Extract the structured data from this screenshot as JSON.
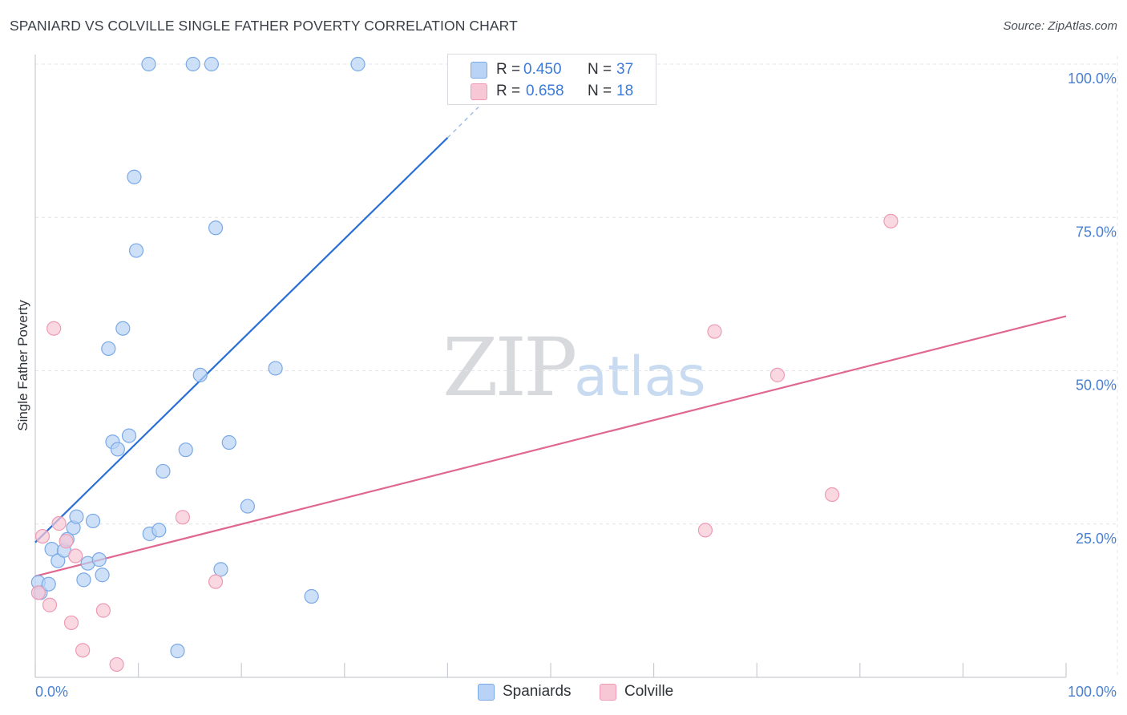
{
  "header": {
    "title": "SPANIARD VS COLVILLE SINGLE FATHER POVERTY CORRELATION CHART",
    "source": "Source: ZipAtlas.com"
  },
  "watermark": {
    "zip": "ZIP",
    "atlas": "atlas"
  },
  "legend": {
    "rows": [
      {
        "r_label": "R =",
        "r_value": "0.450",
        "n_label": "N =",
        "n_value": "37"
      },
      {
        "r_label": "R =",
        "r_value": "0.658",
        "n_label": "N =",
        "n_value": "18"
      }
    ]
  },
  "bottom_legend": {
    "spaniards": "Spaniards",
    "colville": "Colville"
  },
  "colors": {
    "spaniards_fill": "#b8d3f5",
    "spaniards_stroke": "#7aa9e6",
    "spaniards_line": "#2a6fd6",
    "colville_fill": "#f8c7d6",
    "colville_stroke": "#ee9ab4",
    "colville_line": "#e0678f",
    "tick_label": "#4a7fd0"
  },
  "chart_data": {
    "type": "scatter",
    "title": "SPANIARD VS COLVILLE SINGLE FATHER POVERTY CORRELATION CHART",
    "xlabel": "",
    "ylabel": "Single Father Poverty",
    "xlim": [
      0,
      100
    ],
    "ylim": [
      0,
      100
    ],
    "x_tick_labels": [
      "0.0%",
      "100.0%"
    ],
    "y_ticks": [
      25,
      50,
      75,
      100
    ],
    "y_tick_labels": [
      "25.0%",
      "50.0%",
      "75.0%",
      "100.0%"
    ],
    "grid": true,
    "series": [
      {
        "name": "Spaniards",
        "r": 0.45,
        "n": 37,
        "points": [
          {
            "x": 0.3,
            "y": 15.5
          },
          {
            "x": 0.5,
            "y": 13.8
          },
          {
            "x": 1.3,
            "y": 15.2
          },
          {
            "x": 1.6,
            "y": 20.9
          },
          {
            "x": 2.2,
            "y": 19.0
          },
          {
            "x": 2.8,
            "y": 20.7
          },
          {
            "x": 3.1,
            "y": 22.5
          },
          {
            "x": 3.7,
            "y": 24.4
          },
          {
            "x": 4.0,
            "y": 26.2
          },
          {
            "x": 4.7,
            "y": 15.9
          },
          {
            "x": 5.1,
            "y": 18.6
          },
          {
            "x": 5.6,
            "y": 25.5
          },
          {
            "x": 6.2,
            "y": 19.2
          },
          {
            "x": 6.5,
            "y": 16.7
          },
          {
            "x": 7.5,
            "y": 38.4
          },
          {
            "x": 8.0,
            "y": 37.2
          },
          {
            "x": 8.5,
            "y": 56.9
          },
          {
            "x": 7.1,
            "y": 53.6
          },
          {
            "x": 9.1,
            "y": 39.4
          },
          {
            "x": 9.6,
            "y": 81.6
          },
          {
            "x": 9.8,
            "y": 69.6
          },
          {
            "x": 11.0,
            "y": 100.0
          },
          {
            "x": 11.1,
            "y": 23.4
          },
          {
            "x": 12.0,
            "y": 24.0
          },
          {
            "x": 12.4,
            "y": 33.6
          },
          {
            "x": 13.8,
            "y": 4.3
          },
          {
            "x": 14.6,
            "y": 37.1
          },
          {
            "x": 15.3,
            "y": 100.0
          },
          {
            "x": 16.0,
            "y": 49.3
          },
          {
            "x": 17.1,
            "y": 100.0
          },
          {
            "x": 17.5,
            "y": 73.3
          },
          {
            "x": 18.0,
            "y": 17.6
          },
          {
            "x": 18.8,
            "y": 38.3
          },
          {
            "x": 20.6,
            "y": 27.9
          },
          {
            "x": 23.3,
            "y": 50.4
          },
          {
            "x": 26.8,
            "y": 13.2
          },
          {
            "x": 31.3,
            "y": 100.0
          }
        ],
        "trend": {
          "x_from": 0.0,
          "y_from": 22.0,
          "x_to": 40.0,
          "y_to": 88.0,
          "dashed_to_x": 43.0,
          "dashed_to_y": 93.0
        }
      },
      {
        "name": "Colville",
        "r": 0.658,
        "n": 18,
        "points": [
          {
            "x": 0.3,
            "y": 13.8
          },
          {
            "x": 0.7,
            "y": 23.0
          },
          {
            "x": 1.4,
            "y": 11.8
          },
          {
            "x": 1.8,
            "y": 56.9
          },
          {
            "x": 2.3,
            "y": 25.1
          },
          {
            "x": 3.0,
            "y": 22.2
          },
          {
            "x": 3.5,
            "y": 8.9
          },
          {
            "x": 3.9,
            "y": 19.8
          },
          {
            "x": 4.6,
            "y": 4.4
          },
          {
            "x": 6.6,
            "y": 10.9
          },
          {
            "x": 7.9,
            "y": 2.1
          },
          {
            "x": 14.3,
            "y": 26.1
          },
          {
            "x": 17.5,
            "y": 15.6
          },
          {
            "x": 65.0,
            "y": 24.0
          },
          {
            "x": 65.9,
            "y": 56.4
          },
          {
            "x": 72.0,
            "y": 49.3
          },
          {
            "x": 77.3,
            "y": 29.8
          },
          {
            "x": 83.0,
            "y": 74.4
          }
        ],
        "trend": {
          "x_from": 0.0,
          "y_from": 16.5,
          "x_to": 100.0,
          "y_to": 58.9
        }
      }
    ]
  }
}
